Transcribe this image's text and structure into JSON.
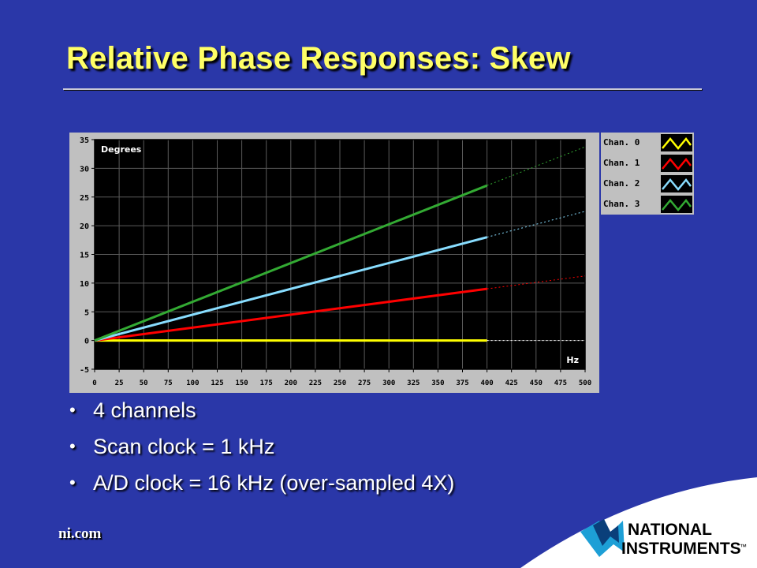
{
  "slide": {
    "title": "Relative Phase Responses: Skew",
    "bullets": [
      "4 channels",
      "Scan clock = 1 kHz",
      "A/D clock = 16 kHz  (over-sampled 4X)"
    ],
    "footer": "ni.com",
    "logo": {
      "line1": "NATIONAL",
      "line2": "INSTRUMENTS",
      "mark": "™"
    }
  },
  "colors": {
    "background": "#2a37a8",
    "title": "#ffff66",
    "plot_bg": "#000000",
    "frame": "#c0c0c0"
  },
  "chart_data": {
    "type": "line",
    "title": "",
    "ylabel": "Degrees",
    "xlabel": "Hz",
    "xlim": [
      0,
      500
    ],
    "ylim": [
      -5,
      35
    ],
    "xticks": [
      0,
      25,
      50,
      75,
      100,
      125,
      150,
      175,
      200,
      225,
      250,
      275,
      300,
      325,
      350,
      375,
      400,
      425,
      450,
      475,
      500
    ],
    "yticks": [
      -5,
      0,
      5,
      10,
      15,
      20,
      25,
      30,
      35
    ],
    "grid": true,
    "legend_position": "right",
    "series": [
      {
        "name": "Chan. 0",
        "color": "#ffff00",
        "x": [
          0,
          400
        ],
        "y": [
          0,
          0
        ],
        "extrapolated": {
          "x": [
            400,
            500
          ],
          "y": [
            0,
            0
          ]
        }
      },
      {
        "name": "Chan. 1",
        "color": "#ff0000",
        "x": [
          0,
          400
        ],
        "y": [
          0,
          9
        ],
        "extrapolated": {
          "x": [
            400,
            500
          ],
          "y": [
            9,
            11.25
          ]
        }
      },
      {
        "name": "Chan. 2",
        "color": "#88ddff",
        "x": [
          0,
          400
        ],
        "y": [
          0,
          18
        ],
        "extrapolated": {
          "x": [
            400,
            500
          ],
          "y": [
            18,
            22.5
          ]
        }
      },
      {
        "name": "Chan. 3",
        "color": "#33aa33",
        "x": [
          0,
          400
        ],
        "y": [
          0,
          27
        ],
        "extrapolated": {
          "x": [
            400,
            500
          ],
          "y": [
            27,
            33.75
          ]
        }
      }
    ]
  }
}
